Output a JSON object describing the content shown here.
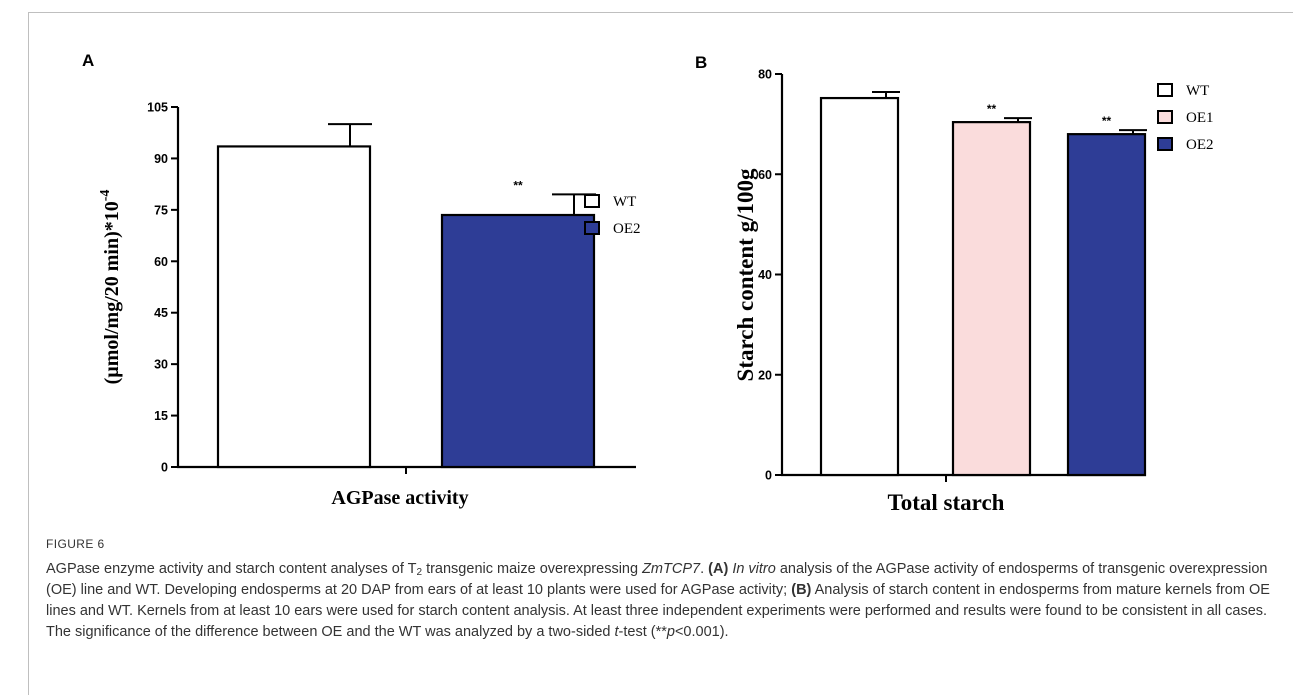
{
  "figure": {
    "label": "FIGURE 6",
    "caption_parts": [
      {
        "t": "AGPase enzyme activity and starch content analyses of T"
      },
      {
        "t": "2",
        "sub": true
      },
      {
        "t": " transgenic maize overexpressing "
      },
      {
        "t": "ZmTCP7",
        "i": true
      },
      {
        "t": ". "
      },
      {
        "t": "(A) ",
        "b": true
      },
      {
        "t": "In vitro",
        "i": true
      },
      {
        "t": " analysis of the AGPase activity of endosperms of transgenic overexpression (OE) line and WT. Developing endosperms at 20 DAP from ears of at least 10 plants were used for AGPase activity; "
      },
      {
        "t": "(B)",
        "b": true
      },
      {
        "t": " Analysis of starch content in endosperms from mature kernels from OE lines and WT. Kernels from at least 10 ears were used for starch content analysis. At least three independent experiments were performed and results were found to be consistent in all cases. The significance of the difference between OE and the WT was analyzed by a two-sided "
      },
      {
        "t": "t",
        "i": true
      },
      {
        "t": "-test (**"
      },
      {
        "t": "p",
        "i": true
      },
      {
        "t": "<0.001)."
      }
    ]
  },
  "colors": {
    "WT": "#ffffff",
    "OE1": "#fadcdc",
    "OE2": "#2e3d96",
    "axis": "#000000"
  },
  "chart_data": [
    {
      "panel": "A",
      "type": "bar",
      "title": "",
      "xlabel": "AGPase activity",
      "ylabel": "(µmol/mg/20 min)*10",
      "ylabel_sup": "-4",
      "ylim": [
        0,
        105
      ],
      "yticks": [
        0,
        15,
        30,
        45,
        60,
        75,
        90,
        105
      ],
      "categories": [
        "WT",
        "OE2"
      ],
      "values": [
        93.5,
        73.5
      ],
      "errors": [
        6.5,
        6
      ],
      "significance": [
        "",
        "**"
      ],
      "legend": [
        "WT",
        "OE2"
      ],
      "legend_position": "right"
    },
    {
      "panel": "B",
      "type": "bar",
      "title": "",
      "xlabel": "Total starch",
      "ylabel": "Starch content g/100g",
      "ylim": [
        0,
        80
      ],
      "yticks": [
        0,
        20,
        40,
        60,
        80
      ],
      "categories": [
        "WT",
        "OE1",
        "OE2"
      ],
      "values": [
        75.2,
        70.4,
        68.0
      ],
      "errors": [
        1.2,
        0.8,
        0.8
      ],
      "significance": [
        "",
        "**",
        "**"
      ],
      "legend": [
        "WT",
        "OE1",
        "OE2"
      ],
      "legend_position": "top-right"
    }
  ]
}
